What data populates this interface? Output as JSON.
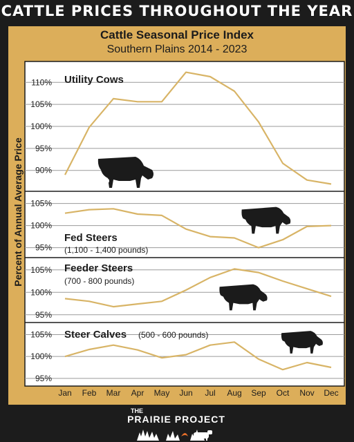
{
  "header": {
    "title": "CATTLE PRICES THROUGHOUT THE YEAR"
  },
  "footer": {
    "logo_the": "THE",
    "logo_name": "PRAIRIE PROJECT"
  },
  "chart_data": {
    "type": "line",
    "title": "Cattle Seasonal Price Index",
    "subtitle": "Southern Plains 2014 - 2023",
    "ylabel": "Percent of Annual Average Price",
    "categories": [
      "Jan",
      "Feb",
      "Mar",
      "Apr",
      "May",
      "Jun",
      "Jul",
      "Aug",
      "Sep",
      "Oct",
      "Nov",
      "Dec"
    ],
    "line_color": "#d8b466",
    "grid_color": "#9a9a9a",
    "panels": [
      {
        "name": "Utility Cows",
        "detail": "",
        "icon": "cow-icon",
        "ylim": [
          86.5,
          113.5
        ],
        "yticks": [
          90,
          95,
          100,
          105,
          110
        ],
        "ytick_labels": [
          "90%",
          "95%",
          "100%",
          "105%",
          "110%"
        ],
        "values": [
          89,
          99.8,
          106.3,
          105.6,
          105.6,
          112.3,
          111.3,
          108,
          101,
          91.6,
          87.8,
          86.9
        ]
      },
      {
        "name": "Fed Steers",
        "detail": "(1,100 - 1,400 pounds)",
        "icon": "steer-icon",
        "ylim": [
          94,
          106.5
        ],
        "yticks": [
          95,
          100,
          105
        ],
        "ytick_labels": [
          "95%",
          "100%",
          "105%"
        ],
        "values": [
          102.8,
          103.6,
          103.8,
          102.6,
          102.3,
          99.2,
          97.5,
          97.2,
          95,
          96.8,
          99.8,
          100
        ]
      },
      {
        "name": "Feeder Steers",
        "detail": "(700 - 800 pounds)",
        "icon": "feeder-steer-icon",
        "ylim": [
          94.5,
          106.5
        ],
        "yticks": [
          95,
          100,
          105
        ],
        "ytick_labels": [
          "95%",
          "100%",
          "105%"
        ],
        "values": [
          98.6,
          98,
          96.8,
          97.4,
          98,
          100.5,
          103.3,
          105.2,
          104.4,
          102.5,
          100.8,
          99.1
        ]
      },
      {
        "name": "Steer Calves",
        "detail": "(500 - 600 pounds)",
        "icon": "calf-icon",
        "ylim": [
          94.5,
          106.5
        ],
        "yticks": [
          95,
          100,
          105
        ],
        "ytick_labels": [
          "95%",
          "100%",
          "105%"
        ],
        "values": [
          100,
          101.6,
          102.6,
          101.5,
          99.7,
          100.4,
          102.6,
          103.3,
          99.4,
          97,
          98.6,
          97.5
        ]
      }
    ]
  }
}
